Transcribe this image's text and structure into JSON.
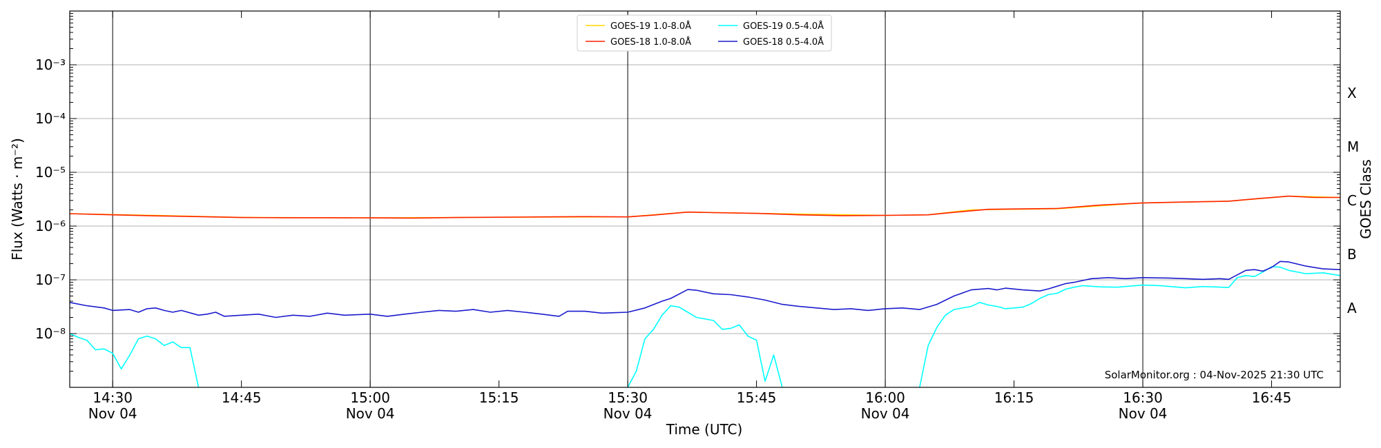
{
  "chart_data": {
    "type": "line",
    "xlabel": "Time (UTC)",
    "ylabel": "Flux (Watts · m⁻²)",
    "y2label": "GOES Class",
    "y_scale": "log",
    "xlim": [
      "14:25",
      "16:53"
    ],
    "ylim": [
      1e-09,
      0.01
    ],
    "y_ticks": [
      {
        "value": 1e-08,
        "label": "10⁻⁸"
      },
      {
        "value": 1e-07,
        "label": "10⁻⁷"
      },
      {
        "value": 1e-06,
        "label": "10⁻⁶"
      },
      {
        "value": 1e-05,
        "label": "10⁻⁵"
      },
      {
        "value": 0.0001,
        "label": "10⁻⁴"
      },
      {
        "value": 0.001,
        "label": "10⁻³"
      }
    ],
    "x_ticks": [
      {
        "time": "14:30",
        "label": "14:30",
        "sublabel": "Nov 04"
      },
      {
        "time": "14:45",
        "label": "14:45",
        "sublabel": ""
      },
      {
        "time": "15:00",
        "label": "15:00",
        "sublabel": "Nov 04"
      },
      {
        "time": "15:15",
        "label": "15:15",
        "sublabel": ""
      },
      {
        "time": "15:30",
        "label": "15:30",
        "sublabel": "Nov 04"
      },
      {
        "time": "15:45",
        "label": "15:45",
        "sublabel": ""
      },
      {
        "time": "16:00",
        "label": "16:00",
        "sublabel": "Nov 04"
      },
      {
        "time": "16:15",
        "label": "16:15",
        "sublabel": ""
      },
      {
        "time": "16:30",
        "label": "16:30",
        "sublabel": "Nov 04"
      },
      {
        "time": "16:45",
        "label": "16:45",
        "sublabel": ""
      }
    ],
    "vertical_lines": [
      "14:30",
      "15:00",
      "15:30",
      "16:00",
      "16:30"
    ],
    "goes_classes": [
      {
        "label": "A",
        "value": 3e-08
      },
      {
        "label": "B",
        "value": 3e-07
      },
      {
        "label": "C",
        "value": 3e-06
      },
      {
        "label": "M",
        "value": 3e-05
      },
      {
        "label": "X",
        "value": 0.0003
      }
    ],
    "grid": "horizontal",
    "legend_position": "top-center",
    "series": [
      {
        "name": "GOES-19 1.0-8.0Å",
        "color": "#ffd700",
        "points": [
          [
            "14:25",
            1.7e-06
          ],
          [
            "14:35",
            1.58e-06
          ],
          [
            "14:45",
            1.45e-06
          ],
          [
            "15:00",
            1.42e-06
          ],
          [
            "15:15",
            1.46e-06
          ],
          [
            "15:30",
            1.48e-06
          ],
          [
            "15:37",
            1.82e-06
          ],
          [
            "15:45",
            1.72e-06
          ],
          [
            "16:00",
            1.58e-06
          ],
          [
            "16:05",
            1.62e-06
          ],
          [
            "16:10",
            2e-06
          ],
          [
            "16:20",
            2.1e-06
          ],
          [
            "16:30",
            2.7e-06
          ],
          [
            "16:40",
            2.9e-06
          ],
          [
            "16:47",
            3.6e-06
          ],
          [
            "16:53",
            3.4e-06
          ]
        ]
      },
      {
        "name": "GOES-18 1.0-8.0Å",
        "color": "#ff2200",
        "points": [
          [
            "14:25",
            1.7e-06
          ],
          [
            "14:30",
            1.62e-06
          ],
          [
            "14:35",
            1.55e-06
          ],
          [
            "14:40",
            1.5e-06
          ],
          [
            "14:45",
            1.44e-06
          ],
          [
            "14:50",
            1.43e-06
          ],
          [
            "14:55",
            1.43e-06
          ],
          [
            "15:00",
            1.42e-06
          ],
          [
            "15:05",
            1.41e-06
          ],
          [
            "15:10",
            1.44e-06
          ],
          [
            "15:15",
            1.46e-06
          ],
          [
            "15:20",
            1.48e-06
          ],
          [
            "15:25",
            1.5e-06
          ],
          [
            "15:30",
            1.48e-06
          ],
          [
            "15:33",
            1.6e-06
          ],
          [
            "15:37",
            1.82e-06
          ],
          [
            "15:40",
            1.78e-06
          ],
          [
            "15:45",
            1.72e-06
          ],
          [
            "15:50",
            1.62e-06
          ],
          [
            "15:55",
            1.56e-06
          ],
          [
            "16:00",
            1.58e-06
          ],
          [
            "16:05",
            1.62e-06
          ],
          [
            "16:08",
            1.8e-06
          ],
          [
            "16:12",
            2.05e-06
          ],
          [
            "16:15",
            2.08e-06
          ],
          [
            "16:20",
            2.12e-06
          ],
          [
            "16:25",
            2.45e-06
          ],
          [
            "16:30",
            2.7e-06
          ],
          [
            "16:35",
            2.8e-06
          ],
          [
            "16:40",
            2.9e-06
          ],
          [
            "16:43",
            3.2e-06
          ],
          [
            "16:47",
            3.6e-06
          ],
          [
            "16:50",
            3.4e-06
          ],
          [
            "16:53",
            3.4e-06
          ]
        ]
      },
      {
        "name": "GOES-19 0.5-4.0Å",
        "color": "#00ffff",
        "points": [
          [
            "14:25",
            1e-08
          ],
          [
            "14:26",
            8.5e-09
          ],
          [
            "14:27",
            7.5e-09
          ],
          [
            "14:28",
            5e-09
          ],
          [
            "14:29",
            5.2e-09
          ],
          [
            "14:30",
            4.3e-09
          ],
          [
            "14:31",
            2.2e-09
          ],
          [
            "14:32",
            4e-09
          ],
          [
            "14:33",
            8e-09
          ],
          [
            "14:34",
            9e-09
          ],
          [
            "14:35",
            8e-09
          ],
          [
            "14:36",
            6e-09
          ],
          [
            "14:37",
            7e-09
          ],
          [
            "14:38",
            5.5e-09
          ],
          [
            "14:39",
            5.5e-09
          ],
          [
            "14:40",
            1e-09
          ],
          [
            null,
            null
          ],
          [
            "15:30",
            1e-09
          ],
          [
            "15:31",
            2e-09
          ],
          [
            "15:32",
            8e-09
          ],
          [
            "15:33",
            1.2e-08
          ],
          [
            "15:34",
            2.2e-08
          ],
          [
            "15:35",
            3.3e-08
          ],
          [
            "15:36",
            3.1e-08
          ],
          [
            "15:37",
            2.5e-08
          ],
          [
            "15:38",
            2e-08
          ],
          [
            "15:40",
            1.75e-08
          ],
          [
            "15:41",
            1.2e-08
          ],
          [
            "15:42",
            1.25e-08
          ],
          [
            "15:43",
            1.45e-08
          ],
          [
            "15:44",
            9e-09
          ],
          [
            "15:45",
            7.5e-09
          ],
          [
            "15:46",
            1.3e-09
          ],
          [
            "15:47",
            4e-09
          ],
          [
            "15:48",
            1e-09
          ],
          [
            null,
            null
          ],
          [
            "16:04",
            1e-09
          ],
          [
            "16:05",
            6e-09
          ],
          [
            "16:06",
            1.3e-08
          ],
          [
            "16:07",
            2.2e-08
          ],
          [
            "16:08",
            2.8e-08
          ],
          [
            "16:10",
            3.2e-08
          ],
          [
            "16:11",
            3.8e-08
          ],
          [
            "16:12",
            3.4e-08
          ],
          [
            "16:13",
            3.2e-08
          ],
          [
            "16:14",
            2.9e-08
          ],
          [
            "16:16",
            3.1e-08
          ],
          [
            "16:17",
            3.6e-08
          ],
          [
            "16:18",
            4.5e-08
          ],
          [
            "16:19",
            5.3e-08
          ],
          [
            "16:20",
            5.6e-08
          ],
          [
            "16:21",
            6.7e-08
          ],
          [
            "16:22",
            7.3e-08
          ],
          [
            "16:23",
            7.8e-08
          ],
          [
            "16:25",
            7.4e-08
          ],
          [
            "16:27",
            7.3e-08
          ],
          [
            "16:30",
            8e-08
          ],
          [
            "16:32",
            7.8e-08
          ],
          [
            "16:35",
            7.1e-08
          ],
          [
            "16:37",
            7.5e-08
          ],
          [
            "16:40",
            7.2e-08
          ],
          [
            "16:41",
            1.1e-07
          ],
          [
            "16:42",
            1.2e-07
          ],
          [
            "16:43",
            1.15e-07
          ],
          [
            "16:44",
            1.4e-07
          ],
          [
            "16:45",
            1.75e-07
          ],
          [
            "16:46",
            1.72e-07
          ],
          [
            "16:47",
            1.5e-07
          ],
          [
            "16:49",
            1.3e-07
          ],
          [
            "16:51",
            1.35e-07
          ],
          [
            "16:53",
            1.2e-07
          ]
        ]
      },
      {
        "name": "GOES-18 0.5-4.0Å",
        "color": "#1a1acd",
        "points": [
          [
            "14:25",
            3.8e-08
          ],
          [
            "14:27",
            3.3e-08
          ],
          [
            "14:29",
            3e-08
          ],
          [
            "14:30",
            2.7e-08
          ],
          [
            "14:32",
            2.8e-08
          ],
          [
            "14:33",
            2.5e-08
          ],
          [
            "14:34",
            2.9e-08
          ],
          [
            "14:35",
            3e-08
          ],
          [
            "14:36",
            2.7e-08
          ],
          [
            "14:37",
            2.5e-08
          ],
          [
            "14:38",
            2.7e-08
          ],
          [
            "14:40",
            2.2e-08
          ],
          [
            "14:41",
            2.3e-08
          ],
          [
            "14:42",
            2.5e-08
          ],
          [
            "14:43",
            2.1e-08
          ],
          [
            "14:45",
            2.2e-08
          ],
          [
            "14:47",
            2.3e-08
          ],
          [
            "14:49",
            2e-08
          ],
          [
            "14:51",
            2.2e-08
          ],
          [
            "14:53",
            2.1e-08
          ],
          [
            "14:55",
            2.4e-08
          ],
          [
            "14:57",
            2.2e-08
          ],
          [
            "15:00",
            2.3e-08
          ],
          [
            "15:02",
            2.1e-08
          ],
          [
            "15:04",
            2.3e-08
          ],
          [
            "15:06",
            2.5e-08
          ],
          [
            "15:08",
            2.7e-08
          ],
          [
            "15:10",
            2.6e-08
          ],
          [
            "15:12",
            2.8e-08
          ],
          [
            "15:14",
            2.5e-08
          ],
          [
            "15:16",
            2.7e-08
          ],
          [
            "15:18",
            2.5e-08
          ],
          [
            "15:20",
            2.3e-08
          ],
          [
            "15:22",
            2.1e-08
          ],
          [
            "15:23",
            2.6e-08
          ],
          [
            "15:25",
            2.6e-08
          ],
          [
            "15:27",
            2.4e-08
          ],
          [
            "15:30",
            2.5e-08
          ],
          [
            "15:32",
            3e-08
          ],
          [
            "15:34",
            4e-08
          ],
          [
            "15:35",
            4.5e-08
          ],
          [
            "15:37",
            6.6e-08
          ],
          [
            "15:38",
            6.4e-08
          ],
          [
            "15:40",
            5.5e-08
          ],
          [
            "15:42",
            5.3e-08
          ],
          [
            "15:44",
            4.8e-08
          ],
          [
            "15:46",
            4.2e-08
          ],
          [
            "15:48",
            3.5e-08
          ],
          [
            "15:50",
            3.2e-08
          ],
          [
            "15:52",
            3e-08
          ],
          [
            "15:54",
            2.8e-08
          ],
          [
            "15:56",
            2.9e-08
          ],
          [
            "15:58",
            2.7e-08
          ],
          [
            "16:00",
            2.9e-08
          ],
          [
            "16:02",
            3e-08
          ],
          [
            "16:04",
            2.8e-08
          ],
          [
            "16:06",
            3.5e-08
          ],
          [
            "16:08",
            5e-08
          ],
          [
            "16:10",
            6.5e-08
          ],
          [
            "16:12",
            6.9e-08
          ],
          [
            "16:13",
            6.5e-08
          ],
          [
            "16:14",
            7e-08
          ],
          [
            "16:16",
            6.5e-08
          ],
          [
            "16:18",
            6.2e-08
          ],
          [
            "16:19",
            6.8e-08
          ],
          [
            "16:21",
            8.5e-08
          ],
          [
            "16:22",
            9e-08
          ],
          [
            "16:24",
            1.05e-07
          ],
          [
            "16:26",
            1.1e-07
          ],
          [
            "16:28",
            1.05e-07
          ],
          [
            "16:30",
            1.1e-07
          ],
          [
            "16:33",
            1.08e-07
          ],
          [
            "16:35",
            1.05e-07
          ],
          [
            "16:37",
            1.02e-07
          ],
          [
            "16:39",
            1.05e-07
          ],
          [
            "16:40",
            1.02e-07
          ],
          [
            "16:42",
            1.5e-07
          ],
          [
            "16:43",
            1.55e-07
          ],
          [
            "16:44",
            1.45e-07
          ],
          [
            "16:45",
            1.7e-07
          ],
          [
            "16:46",
            2.2e-07
          ],
          [
            "16:47",
            2.15e-07
          ],
          [
            "16:49",
            1.8e-07
          ],
          [
            "16:51",
            1.6e-07
          ],
          [
            "16:53",
            1.55e-07
          ]
        ]
      }
    ]
  },
  "watermark": "SolarMonitor.org : 04-Nov-2025 21:30 UTC"
}
